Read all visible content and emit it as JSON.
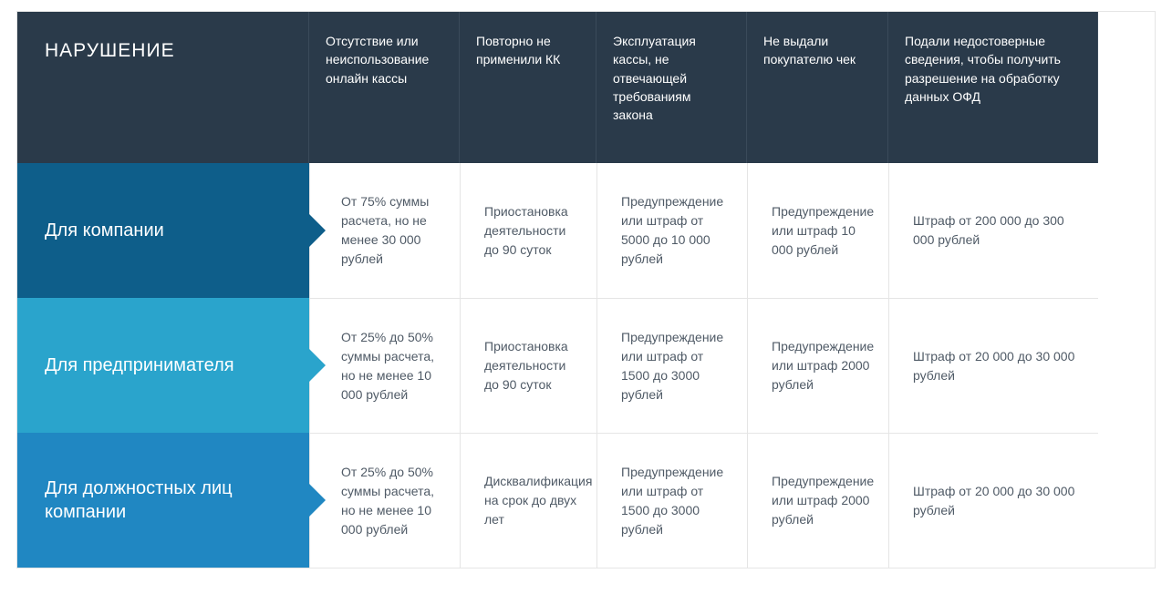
{
  "header": {
    "title": "НАРУШЕНИЕ",
    "columns": [
      "Отсутствие или неиспользование онлайн кассы",
      "Повторно не применили КК",
      "Эксплуатация кассы, не отвечающей требованиям закона",
      "Не выдали покупателю чек",
      "Подали недостоверные сведения, чтобы получить разрешение на обработку данных ОФД"
    ]
  },
  "rows": [
    {
      "label": "Для компании",
      "cells": [
        "От 75% суммы расчета, но не менее 30 000 рублей",
        "Приостановка деятельности до 90 суток",
        "Предупреждение или штраф от 5000 до 10 000 рублей",
        "Предупреждение или штраф 10 000 рублей",
        "Штраф от 200 000 до 300 000 рублей"
      ]
    },
    {
      "label": "Для предпринимателя",
      "cells": [
        "От 25% до 50% суммы расчета, но не менее 10 000 рублей",
        "Приостановка деятельности до 90 суток",
        "Предупреждение или штраф от 1500 до 3000 рублей",
        "Предупреждение или штраф 2000 рублей",
        "Штраф от 20 000 до 30 000 рублей"
      ]
    },
    {
      "label": "Для должностных лиц компании",
      "cells": [
        "От 25% до 50% суммы расчета, но не менее 10 000 рублей",
        "Дисквалификация на срок до двух лет",
        "Предупреждение или штраф от 1500 до 3000 рублей",
        "Предупреждение или штраф 2000 рублей",
        "Штраф от 20 000 до 30 000 рублей"
      ]
    }
  ],
  "colors": {
    "header_bg": "#2a3a4a",
    "row1_bg": "#0e5e8a",
    "row2_bg": "#2aa4cc",
    "row3_bg": "#2087c2",
    "alt_row_bg": "#f1f3f5",
    "text_body": "#4f5a66",
    "border": "#e5e5e5"
  }
}
